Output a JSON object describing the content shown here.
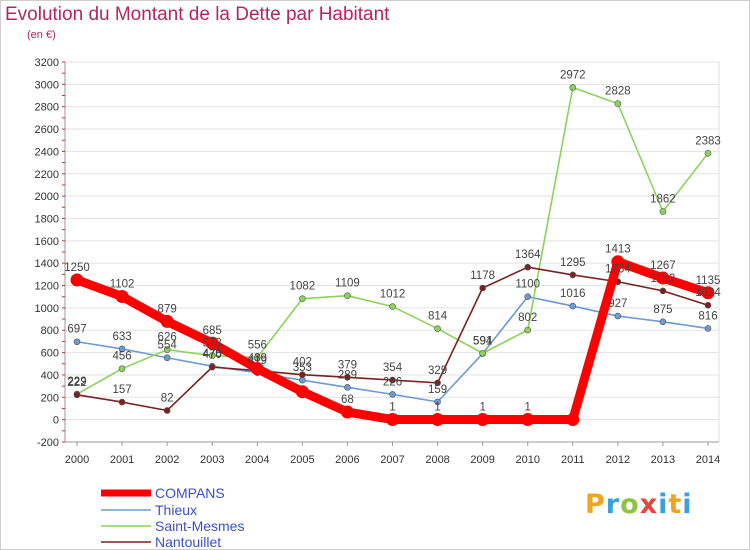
{
  "header": {
    "title": "Evolution du Montant de la Dette par Habitant",
    "subtitle": "(en €)"
  },
  "logo": {
    "text": "Proxiti"
  },
  "chart_data": {
    "type": "line",
    "categories": [
      "2000",
      "2001",
      "2002",
      "2003",
      "2004",
      "2005",
      "2006",
      "2007",
      "2008",
      "2009",
      "2010",
      "2011",
      "2012",
      "2013",
      "2014"
    ],
    "ylim": [
      -200,
      3200
    ],
    "yticks": [
      -200,
      0,
      200,
      400,
      600,
      800,
      1000,
      1200,
      1400,
      1600,
      1800,
      2000,
      2200,
      2400,
      2600,
      2800,
      3000,
      3200
    ],
    "grid": "horizontal",
    "legend_position": "bottom-left",
    "series": [
      {
        "name": "COMPANS",
        "color": "#ff0000",
        "style": "thick",
        "values": [
          1250,
          1102,
          879,
          685,
          456,
          250,
          68,
          1,
          1,
          1,
          1,
          1,
          1413,
          1267,
          1135
        ],
        "labels": [
          "1250",
          "1102",
          "879",
          "685",
          "",
          "",
          "68",
          "1",
          "1",
          "1",
          "1",
          "",
          "1413",
          "1267",
          "1135"
        ]
      },
      {
        "name": "Thieux",
        "color": "#6b9bd1",
        "style": "thin",
        "values": [
          697,
          633,
          554,
          478,
          419,
          353,
          289,
          226,
          159,
          591,
          1100,
          1016,
          927,
          875,
          816
        ],
        "labels": [
          "697",
          "633",
          "554",
          "478",
          "419",
          "353",
          "289",
          "226",
          "159",
          "591",
          "1100",
          "1016",
          "927",
          "875",
          "816"
        ]
      },
      {
        "name": "Saint-Mesmes",
        "color": "#8bd35a",
        "style": "thin",
        "values": [
          229,
          456,
          626,
          573,
          556,
          1082,
          1109,
          1012,
          814,
          594,
          802,
          2972,
          2828,
          1862,
          2383
        ],
        "labels": [
          "229",
          "456",
          "626",
          "573",
          "556",
          "1082",
          "1109",
          "1012",
          "814",
          "594",
          "802",
          "2972",
          "2828",
          "1862",
          "2383"
        ]
      },
      {
        "name": "Nantouillet",
        "color": "#7a2222",
        "style": "thin",
        "values": [
          222,
          157,
          82,
          470,
          439,
          402,
          379,
          354,
          329,
          1178,
          1364,
          1295,
          1234,
          1152,
          1024
        ],
        "labels": [
          "222",
          "157",
          "82",
          "470",
          "439",
          "402",
          "379",
          "354",
          "329",
          "1178",
          "1364",
          "1295",
          "1234",
          "1152",
          "1024"
        ]
      }
    ]
  }
}
